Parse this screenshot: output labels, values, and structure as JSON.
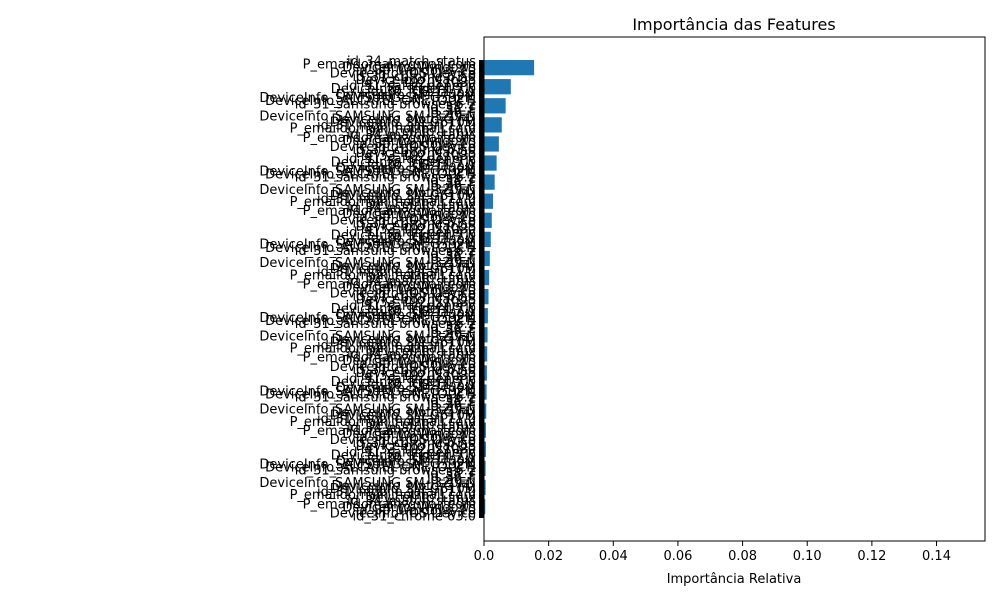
{
  "chart_data": {
    "type": "bar",
    "orientation": "horizontal",
    "title": "Importância das Features",
    "xlabel": "Importância Relativa",
    "ylabel": "",
    "xlim": [
      0,
      0.155
    ],
    "xticks": [
      0.0,
      0.02,
      0.04,
      0.06,
      0.08,
      0.1,
      0.12,
      0.14
    ],
    "xtick_labels": [
      "0.0",
      "0.02",
      "0.04",
      "0.06",
      "0.08",
      "0.10",
      "0.12",
      "0.14"
    ],
    "grid": false,
    "legend": "none",
    "colors": {
      "bar": "#1f77b4",
      "axis": "#000000",
      "background": "#ffffff"
    },
    "categories": [
      "id_34_match_status",
      "P_emaildomain_gmail.com",
      "DeviceInfo_Windows",
      "id_30_Windows 10",
      "DeviceInfo_iOS Device",
      "id_31_chrome 63.0",
      "DeviceInfo_MacOS",
      "id_33_1920x1080",
      "id_31_safari generic",
      "DeviceInfo_Trident/7.0",
      "id_30_iOS 11.2.1",
      "DeviceInfo_SM-J700M",
      "DeviceInfo_SAMSUNG SM-G532M",
      "DeviceInfo_ALCATEL ONETOUCH",
      "id_31_samsung browser 6.2",
      "id_38_T",
      "id_35_F",
      "id_36_F",
      "DeviceInfo_SAMSUNG SM-J320FN",
      "DeviceInfo_Moto G (4)",
      "DeviceInfo_SM-G610M",
      "id_31_mobile safari 11.0",
      "P_emaildomain_hotmail.com",
      "DeviceInfo_Linux"
    ],
    "values": [
      0.0155,
      0.0083,
      0.0067,
      0.0055,
      0.0046,
      0.0039,
      0.0033,
      0.0028,
      0.0024,
      0.0021,
      0.0018,
      0.0016,
      0.0014,
      0.0012,
      0.0011,
      0.001,
      0.0009,
      0.0008,
      0.0007,
      0.0006,
      0.0006,
      0.0005,
      0.0005,
      0.0004
    ]
  }
}
